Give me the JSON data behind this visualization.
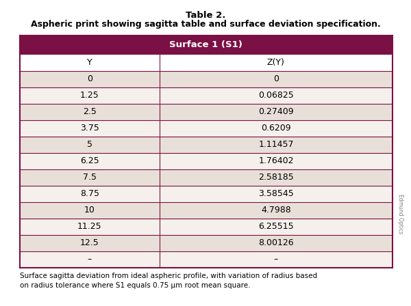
{
  "title_line1": "Table 2.",
  "title_line2": "Aspheric print showing sagitta table and surface deviation specification.",
  "header_label": "Surface 1 (S1)",
  "header_bg": "#7B1044",
  "header_text_color": "#FFFFFF",
  "col_headers": [
    "Y",
    "Z(Y)"
  ],
  "rows": [
    [
      "0",
      "0"
    ],
    [
      "1.25",
      "0.06825"
    ],
    [
      "2.5",
      "0.27409"
    ],
    [
      "3.75",
      "0.6209"
    ],
    [
      "5",
      "1.11457"
    ],
    [
      "6.25",
      "1.76402"
    ],
    [
      "7.5",
      "2.58185"
    ],
    [
      "8.75",
      "3.58545"
    ],
    [
      "10",
      "4.7988"
    ],
    [
      "11.25",
      "6.25515"
    ],
    [
      "12.5",
      "8.00126"
    ],
    [
      "–",
      "–"
    ]
  ],
  "row_colors_even": "#E8E0D8",
  "row_colors_odd": "#F5F0EC",
  "col_header_bg": "#FFFFFF",
  "border_color": "#7B1044",
  "footer_text": "Surface sagitta deviation from ideal aspheric profile, with variation of radius based\non radius tolerance where S1 equals 0.75 μm root mean square.",
  "watermark": "Edmund Optics",
  "fig_bg": "#FFFFFF"
}
